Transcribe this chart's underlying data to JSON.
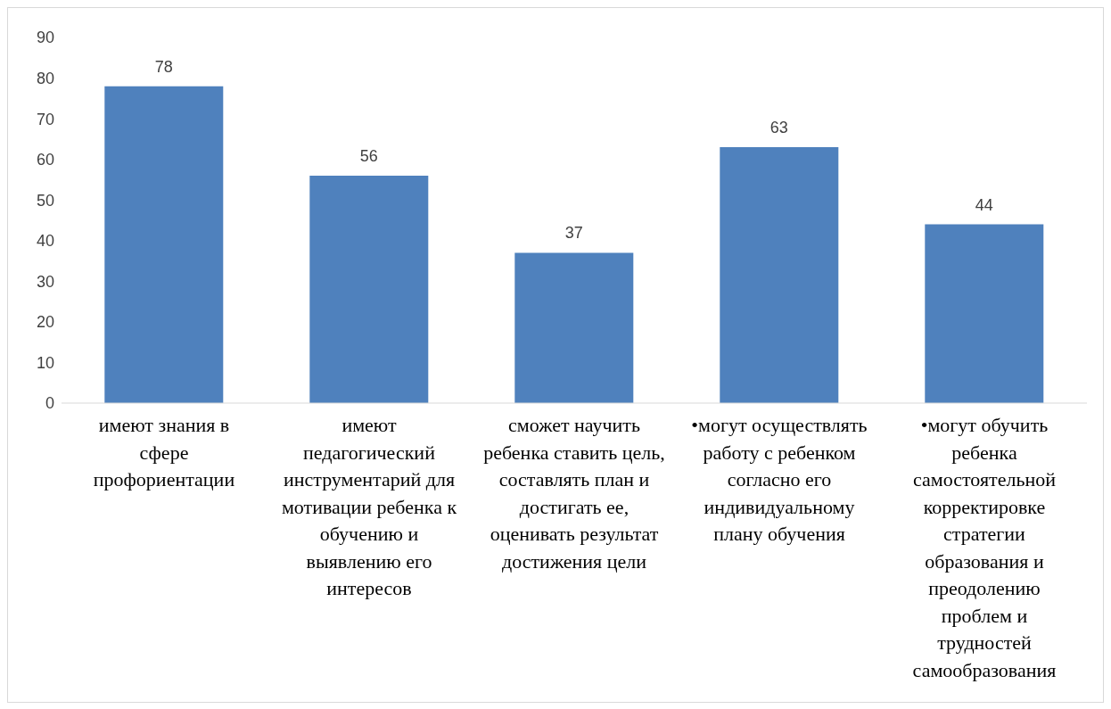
{
  "chart_data": {
    "type": "bar",
    "categories": [
      "имеют знания в сфере профориентации",
      "имеют педагогический инструментарий для мотивации ребенка к обучению и выявлению его интересов",
      "сможет научить ребенка ставить цель, составлять план и достигать ее, оценивать результат достижения цели",
      "•могут осуществлять работу с ребенком согласно его индивидуальному плану обучения",
      "•могут обучить ребенка самостоятельной корректировке стратегии образования и преодолению проблем и трудностей самообразования"
    ],
    "values": [
      78,
      56,
      37,
      63,
      44
    ],
    "color": "#4f81bd",
    "ylim": [
      0,
      90
    ],
    "yticks": [
      0,
      10,
      20,
      30,
      40,
      50,
      60,
      70,
      80,
      90
    ],
    "grid": false,
    "data_labels": true
  }
}
